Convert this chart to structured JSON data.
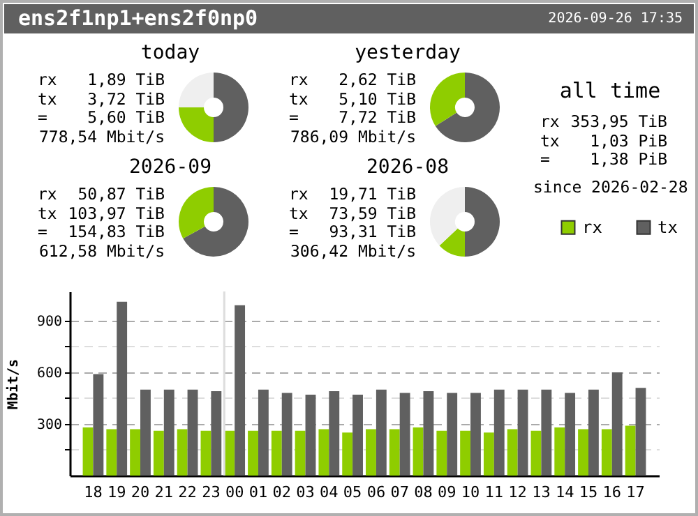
{
  "chart_data": [
    {
      "type": "other",
      "title": "ens2f1np1+ens2f0np0",
      "annotations": [
        "2026-09-26 17:35"
      ]
    },
    {
      "type": "donut",
      "title": "today",
      "categories": [
        null,
        null,
        null
      ],
      "values": [
        50,
        25,
        25
      ],
      "colors": [
        "#606060",
        "#8fcd00",
        "#efefef"
      ],
      "annotations": [
        "rx",
        "1,89 TiB",
        "tx",
        "3,72 TiB",
        "=",
        "5,60 TiB",
        "778,54 Mbit/s"
      ]
    },
    {
      "type": "donut",
      "title": "yesterday",
      "categories": [
        null,
        null
      ],
      "values": [
        66,
        34
      ],
      "colors": [
        "#606060",
        "#8fcd00"
      ],
      "annotations": [
        "rx",
        "2,62 TiB",
        "tx",
        "5,10 TiB",
        "=",
        "7,72 TiB",
        "786,09 Mbit/s"
      ]
    },
    {
      "type": "other",
      "title": "all time",
      "annotations": [
        "rx",
        "353,95 TiB",
        "tx",
        "1,03 PiB",
        "=",
        "1,38 PiB",
        "since 2026-02-28"
      ]
    },
    {
      "type": "donut",
      "title": "2026-09",
      "categories": [
        null,
        null
      ],
      "values": [
        67,
        33
      ],
      "colors": [
        "#606060",
        "#8fcd00"
      ],
      "annotations": [
        "rx",
        "50,87 TiB",
        "tx",
        "103,97 TiB",
        "=",
        "154,83 TiB",
        "612,58 Mbit/s"
      ]
    },
    {
      "type": "donut",
      "title": "2026-08",
      "categories": [
        null,
        null,
        null
      ],
      "values": [
        50,
        13,
        37
      ],
      "colors": [
        "#606060",
        "#8fcd00",
        "#efefef"
      ],
      "annotations": [
        "rx",
        "19,71 TiB",
        "tx",
        "73,59 TiB",
        "=",
        "93,31 TiB",
        "306,42 Mbit/s"
      ]
    },
    {
      "type": "bar",
      "ylabel": "Mbit/s",
      "categories": [
        "18",
        "19",
        "20",
        "21",
        "22",
        "23",
        "00",
        "01",
        "02",
        "03",
        "04",
        "05",
        "06",
        "07",
        "08",
        "09",
        "10",
        "11",
        "12",
        "13",
        "14",
        "15",
        "16",
        "17"
      ],
      "series": [
        {
          "name": "rx",
          "color": "#8fcd00",
          "values": [
            280,
            270,
            270,
            260,
            270,
            260,
            260,
            260,
            260,
            260,
            270,
            250,
            270,
            270,
            280,
            260,
            260,
            250,
            270,
            260,
            280,
            270,
            270,
            290
          ]
        },
        {
          "name": "tx",
          "color": "#606060",
          "values": [
            590,
            1010,
            500,
            500,
            500,
            490,
            990,
            500,
            480,
            470,
            490,
            470,
            500,
            480,
            490,
            480,
            480,
            500,
            500,
            500,
            480,
            500,
            600,
            510
          ]
        }
      ],
      "ylim": [
        0,
        1070
      ],
      "yticks": [
        {
          "value": 150,
          "label": null
        },
        300,
        {
          "value": 450,
          "label": null
        },
        600,
        {
          "value": 750,
          "label": null
        },
        900
      ],
      "grid": "y",
      "legend": "top right",
      "ref_lines": [
        {
          "axis": "x",
          "value": "00",
          "color": "#dddddd"
        }
      ]
    }
  ]
}
